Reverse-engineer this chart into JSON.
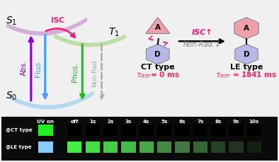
{
  "left_panel": {
    "abs_color": "#8800cc",
    "fluo_color": "#4499ff",
    "phos_color": "#22bb22",
    "nonrad_color": "#aaaaaa",
    "isc_color": "#ff1177",
    "bg_color": "#dde8f5"
  },
  "right_panel": {
    "ct_label": "CT type",
    "le_label": "LE type",
    "isc_arrow_color": "#ff1177",
    "hex_a_color": "#f0a0aa",
    "hex_d_color": "#b8b8e8",
    "label_color": "#ff2266",
    "bg_color": "#f0f0f0"
  },
  "bottom_panel": {
    "header": [
      "UV on",
      "off",
      "1s",
      "2s",
      "3s",
      "4s",
      "5s",
      "6s",
      "7s",
      "8s",
      "9s",
      "10s"
    ],
    "ct_colors": [
      "#22ee22",
      "black",
      "black",
      "black",
      "black",
      "black",
      "black",
      "black",
      "black",
      "black",
      "black",
      "black"
    ],
    "le_colors": [
      "#88ccff",
      "#44ee44",
      "#44dd44",
      "#44cc44",
      "#44bb44",
      "#44aa44",
      "#448844",
      "#447744",
      "#336633",
      "#224422",
      "#223322",
      "#112211"
    ],
    "bg_color": "#111111"
  }
}
